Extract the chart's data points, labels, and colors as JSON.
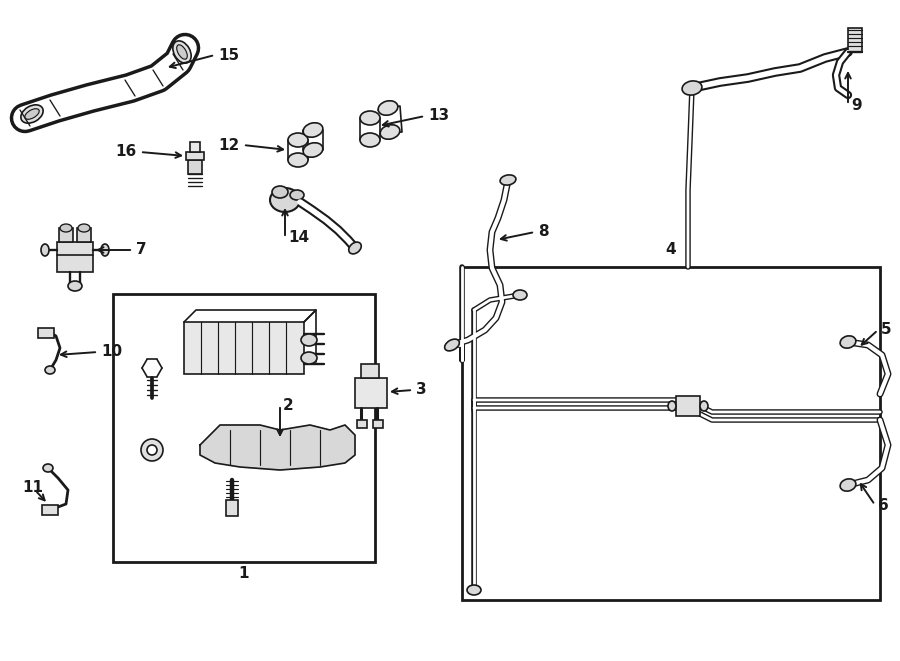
{
  "bg_color": "#ffffff",
  "line_color": "#1a1a1a",
  "figsize": [
    9.0,
    6.61
  ],
  "dpi": 100,
  "lw": 1.2
}
